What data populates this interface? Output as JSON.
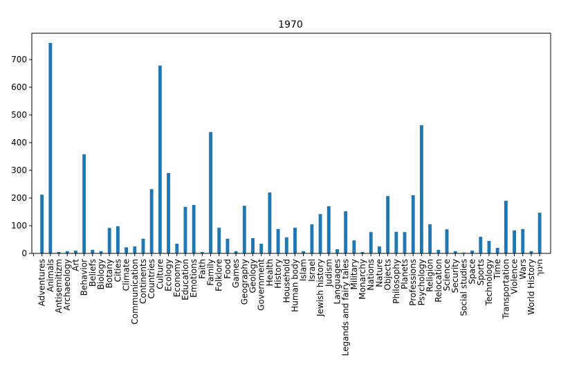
{
  "chart_data": {
    "type": "bar",
    "title": "1970",
    "xlabel": "",
    "ylabel": "",
    "ylim": [
      0,
      795
    ],
    "yticks": [
      0,
      100,
      200,
      300,
      400,
      500,
      600,
      700
    ],
    "bar_color": "#1f77b4",
    "grid": false,
    "categories": [
      "Adventures",
      "Animals",
      "Antisemitizm",
      "Archaeology",
      "Art",
      "Behavior",
      "Beliefs",
      "Biology",
      "Botany",
      "Cities",
      "Climate",
      "Communication",
      "Continents",
      "Countries",
      "Culture",
      "Ecology",
      "Economy",
      "Education",
      "Emotions",
      "Faith",
      "Family",
      "Folklore",
      "Food",
      "Games",
      "Geography",
      "Geology",
      "Government",
      "Health",
      "History",
      "Household",
      "Human body",
      "Islam",
      "Israel",
      "Jewish history",
      "Judism",
      "Languages",
      "Legands and fairy tales",
      "Military",
      "Monarchy",
      "Nations",
      "Nature",
      "Objects",
      "Philosophy",
      "Planets",
      "Professions",
      "Psychology",
      "Religion",
      "Relocation",
      "Science",
      "Security",
      "Social studies",
      "Space",
      "Sports",
      "Technology",
      "Time",
      "Transportation",
      "Violence",
      "Wars",
      "World History",
      "חינוך"
    ],
    "values": [
      212,
      760,
      5,
      8,
      10,
      358,
      13,
      8,
      92,
      98,
      22,
      25,
      53,
      232,
      678,
      290,
      35,
      168,
      175,
      5,
      438,
      93,
      53,
      8,
      172,
      55,
      35,
      220,
      88,
      58,
      93,
      8,
      105,
      142,
      170,
      15,
      152,
      47,
      5,
      77,
      25,
      207,
      78,
      77,
      210,
      463,
      105,
      13,
      87,
      8,
      3,
      10,
      60,
      45,
      20,
      190,
      83,
      88,
      8,
      147
    ]
  }
}
